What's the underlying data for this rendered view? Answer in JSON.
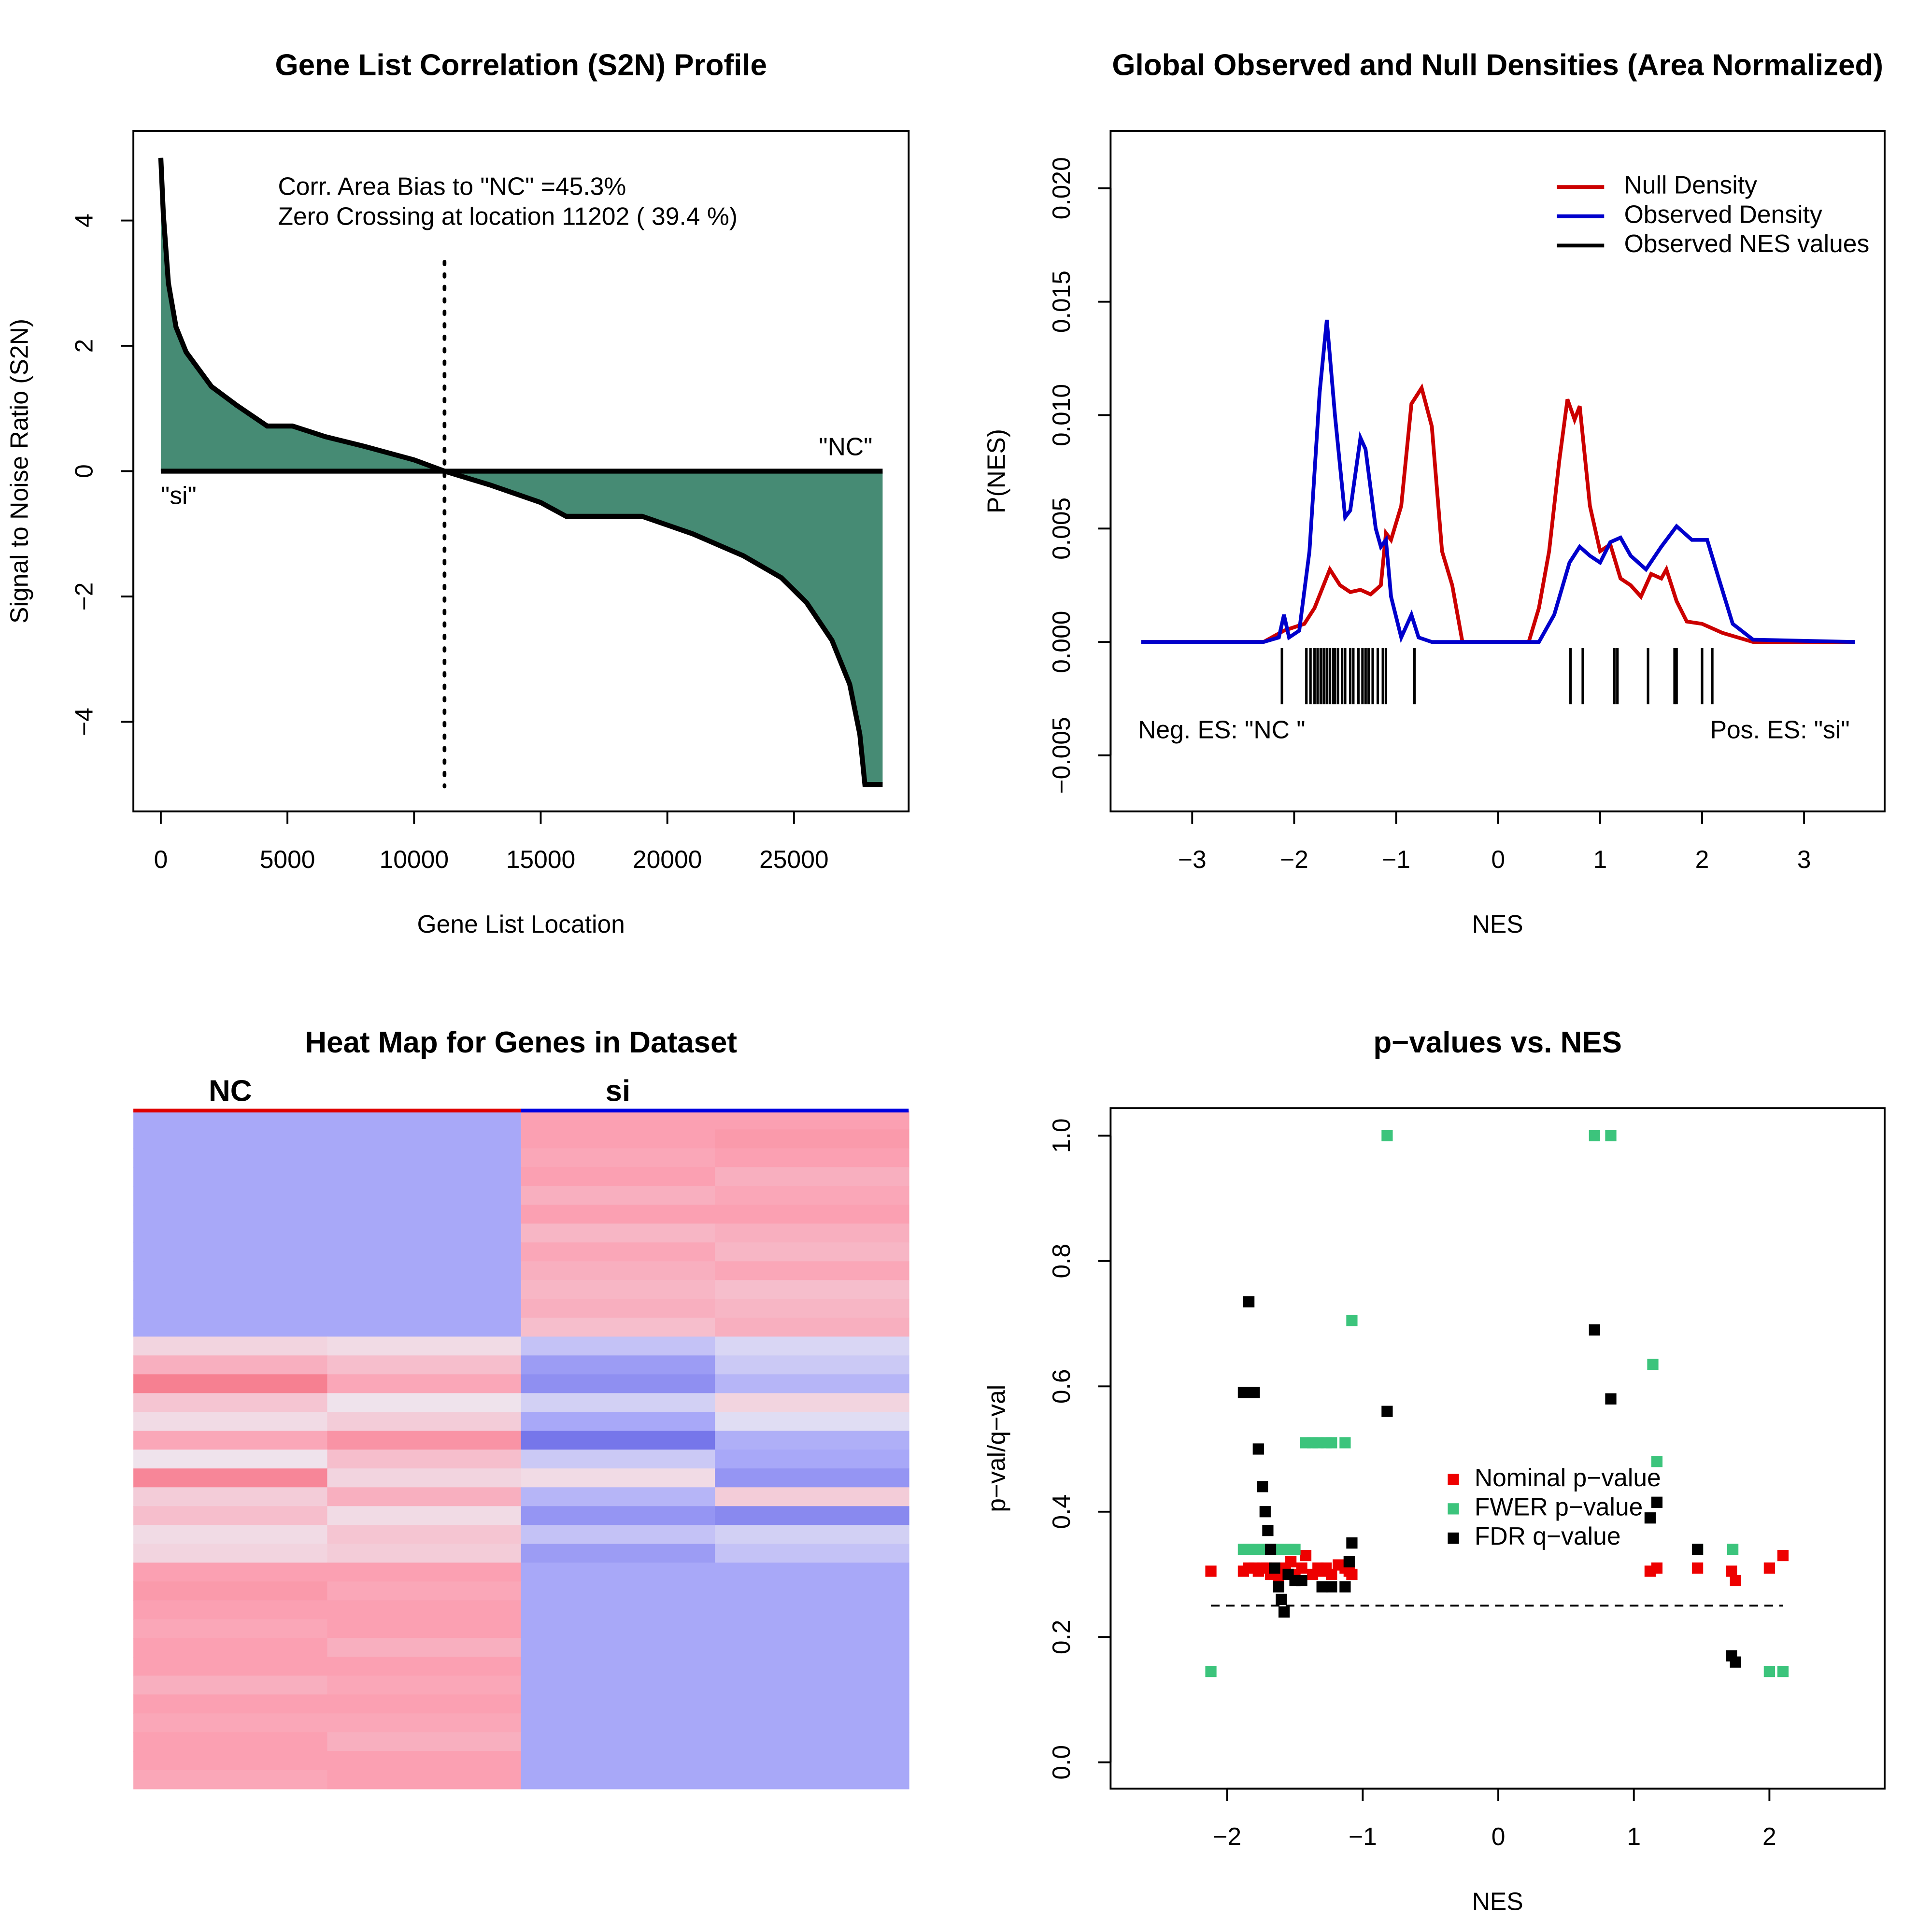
{
  "chart_data": [
    {
      "type": "area",
      "title": "Gene List Correlation (S2N) Profile",
      "x_label": "Gene List Location",
      "y_label": "Signal to Noise Ratio (S2N)",
      "x": [
        0,
        100,
        300,
        600,
        1000,
        2000,
        3000,
        4200,
        5200,
        6500,
        8000,
        10000,
        11202,
        13000,
        15000,
        16000,
        19000,
        21000,
        23000,
        24500,
        25500,
        26500,
        27200,
        27600,
        27800,
        28500
      ],
      "series": [
        {
          "color": "#468b74",
          "values": [
            5.0,
            4.1,
            3.0,
            2.3,
            1.9,
            1.35,
            1.05,
            0.72,
            0.72,
            0.55,
            0.4,
            0.18,
            0,
            -0.22,
            -0.5,
            -0.72,
            -0.72,
            -1.0,
            -1.35,
            -1.7,
            -2.1,
            -2.7,
            -3.4,
            -4.2,
            -5.0,
            -5.0
          ]
        }
      ],
      "zero_crossing": 11202,
      "annotations": [
        "Corr. Area Bias to \"NC\" =45.3%",
        "Zero Crossing at location  11202  ( 39.4  %)",
        "\"NC\"",
        "\"si\""
      ],
      "xlim": [
        -1083,
        29528
      ],
      "ylim": [
        -5.43,
        5.43
      ],
      "xticks": [
        0,
        5000,
        10000,
        15000,
        20000,
        25000
      ],
      "yticks": [
        {
          "value": -4,
          "label": "−4"
        },
        {
          "value": -2,
          "label": "−2"
        },
        0,
        2,
        4
      ]
    },
    {
      "type": "line",
      "title": "Global Observed and Null Densities (Area Normalized)",
      "x_label": "NES",
      "y_label": "P(NES)",
      "series": [
        {
          "name": "Null Density",
          "color": "#cc0000",
          "x": [
            -3.5,
            -2.3,
            -2.1,
            -1.9,
            -1.8,
            -1.65,
            -1.55,
            -1.45,
            -1.35,
            -1.25,
            -1.15,
            -1.1,
            -1.05,
            -0.95,
            -0.85,
            -0.75,
            -0.65,
            -0.55,
            -0.45,
            -0.35,
            0.3,
            0.4,
            0.5,
            0.6,
            0.68,
            0.75,
            0.8,
            0.9,
            1.0,
            1.1,
            1.2,
            1.3,
            1.4,
            1.5,
            1.6,
            1.65,
            1.75,
            1.85,
            2.0,
            2.2,
            2.5,
            3.5
          ],
          "values": [
            0,
            0,
            0.0005,
            0.0008,
            0.0015,
            0.0032,
            0.0025,
            0.0022,
            0.0023,
            0.0021,
            0.0025,
            0.0048,
            0.0045,
            0.006,
            0.0105,
            0.0112,
            0.0095,
            0.004,
            0.0025,
            0,
            0,
            0.0015,
            0.004,
            0.008,
            0.0107,
            0.0098,
            0.0104,
            0.006,
            0.004,
            0.0043,
            0.0028,
            0.0025,
            0.002,
            0.003,
            0.0028,
            0.0032,
            0.0018,
            0.0009,
            0.0008,
            0.0004,
            0,
            0
          ]
        },
        {
          "name": "Observed Density",
          "color": "#0000cc",
          "x": [
            -3.5,
            -2.3,
            -2.15,
            -2.1,
            -2.05,
            -1.95,
            -1.85,
            -1.75,
            -1.68,
            -1.6,
            -1.5,
            -1.45,
            -1.35,
            -1.3,
            -1.2,
            -1.15,
            -1.1,
            -1.05,
            -0.95,
            -0.85,
            -0.78,
            -0.65,
            0.4,
            0.55,
            0.7,
            0.8,
            0.9,
            1.0,
            1.1,
            1.2,
            1.3,
            1.45,
            1.6,
            1.75,
            1.9,
            2.05,
            2.15,
            2.3,
            2.5,
            3.5
          ],
          "values": [
            0,
            0,
            0.0002,
            0.0012,
            0.0002,
            0.0005,
            0.004,
            0.011,
            0.0142,
            0.01,
            0.0055,
            0.0058,
            0.009,
            0.0085,
            0.005,
            0.0042,
            0.0045,
            0.002,
            0.0002,
            0.0012,
            0.0002,
            0,
            0,
            0.0012,
            0.0035,
            0.0042,
            0.0038,
            0.0035,
            0.0044,
            0.0046,
            0.0038,
            0.0032,
            0.0042,
            0.0051,
            0.0045,
            0.0045,
            0.003,
            0.0008,
            0.0001,
            0
          ]
        }
      ],
      "rug": {
        "name": "Observed NES values",
        "color": "#000000",
        "x": [
          -2.12,
          -1.88,
          -1.84,
          -1.8,
          -1.77,
          -1.74,
          -1.71,
          -1.68,
          -1.65,
          -1.62,
          -1.6,
          -1.57,
          -1.53,
          -1.5,
          -1.45,
          -1.42,
          -1.37,
          -1.33,
          -1.3,
          -1.27,
          -1.23,
          -1.18,
          -1.13,
          -1.1,
          -0.82,
          0.71,
          0.83,
          1.14,
          1.17,
          1.47,
          1.73,
          1.75,
          2.0,
          2.1
        ]
      },
      "annotations": [
        "Neg. ES: \"NC \"",
        "Pos. ES: \"si\""
      ],
      "legend": "top-right",
      "xlim": [
        -3.8,
        3.79
      ],
      "ylim": [
        -0.00747,
        0.02253
      ],
      "xticks": [
        {
          "value": -3,
          "label": "−3"
        },
        {
          "value": -2,
          "label": "−2"
        },
        {
          "value": -1,
          "label": "−1"
        },
        0,
        1,
        2,
        3
      ],
      "yticks": [
        {
          "value": -0.005,
          "label": "−0.005"
        },
        {
          "value": 0,
          "label": "0.000"
        },
        {
          "value": 0.005,
          "label": "0.005"
        },
        {
          "value": 0.01,
          "label": "0.010"
        },
        {
          "value": 0.015,
          "label": "0.015"
        },
        {
          "value": 0.02,
          "label": "0.020"
        }
      ]
    },
    {
      "type": "heatmap",
      "title": "Heat Map for Genes in Dataset",
      "groups": [
        {
          "name": "NC",
          "color": "#e00000"
        },
        {
          "name": "si",
          "color": "#0000e0"
        }
      ],
      "color_scale": {
        "values": [
          -2,
          -1,
          0,
          1,
          2
        ],
        "colors": [
          "#6a6ae6",
          "#a8a8f8",
          "#eeeaf2",
          "#fba0b2",
          "#f06070"
        ]
      },
      "rows": [
        [
          -1,
          -1,
          1,
          1
        ],
        [
          -1,
          -1,
          1,
          1.1
        ],
        [
          -1,
          -1,
          0.9,
          1
        ],
        [
          -1,
          -1,
          1,
          0.8
        ],
        [
          -1,
          -1,
          0.8,
          0.9
        ],
        [
          -1,
          -1,
          1,
          1
        ],
        [
          -1,
          -1,
          0.7,
          0.8
        ],
        [
          -1,
          -1,
          0.9,
          0.7
        ],
        [
          -1,
          -1,
          0.8,
          0.9
        ],
        [
          -1,
          -1,
          0.7,
          0.6
        ],
        [
          -1,
          -1,
          0.8,
          0.7
        ],
        [
          -1,
          -1,
          0.6,
          0.8
        ],
        [
          0.3,
          0.2,
          -0.6,
          -0.3
        ],
        [
          0.8,
          0.6,
          -1.2,
          -0.5
        ],
        [
          1.5,
          0.9,
          -1.4,
          -0.8
        ],
        [
          0.5,
          0.1,
          -0.4,
          0.3
        ],
        [
          0.2,
          0.4,
          -1.0,
          -0.2
        ],
        [
          0.9,
          1.2,
          -1.8,
          -0.9
        ],
        [
          0.1,
          0.6,
          -0.5,
          -1.0
        ],
        [
          1.4,
          0.3,
          0.2,
          -1.3
        ],
        [
          0.4,
          0.8,
          -0.8,
          0.4
        ],
        [
          0.6,
          0.2,
          -1.3,
          -1.5
        ],
        [
          0.2,
          0.5,
          -0.6,
          -0.4
        ],
        [
          0.3,
          0.4,
          -1.2,
          -0.6
        ],
        [
          1,
          1,
          -1,
          -1
        ],
        [
          1.1,
          0.9,
          -1,
          -1
        ],
        [
          1,
          1,
          -1,
          -1
        ],
        [
          0.9,
          1,
          -1,
          -1
        ],
        [
          1,
          0.8,
          -1,
          -1
        ],
        [
          1,
          1,
          -1,
          -1
        ],
        [
          0.8,
          0.9,
          -1,
          -1
        ],
        [
          1,
          1,
          -1,
          -1
        ],
        [
          0.9,
          0.9,
          -1,
          -1
        ],
        [
          1,
          0.8,
          -1,
          -1
        ],
        [
          1,
          1,
          -1,
          -1
        ],
        [
          0.9,
          1,
          -1,
          -1
        ]
      ]
    },
    {
      "type": "scatter",
      "title": "p−values vs. NES",
      "x_label": "NES",
      "y_label": "p−val/q−val",
      "series": [
        {
          "name": "Nominal p−value",
          "color": "#ee0000",
          "x": [
            -2.12,
            -1.88,
            -1.84,
            -1.8,
            -1.77,
            -1.74,
            -1.71,
            -1.68,
            -1.65,
            -1.62,
            -1.6,
            -1.57,
            -1.53,
            -1.5,
            -1.45,
            -1.42,
            -1.37,
            -1.33,
            -1.3,
            -1.27,
            -1.23,
            -1.18,
            -1.13,
            -1.1,
            -1.08,
            1.12,
            1.17,
            1.47,
            1.72,
            1.75,
            2.0,
            2.1
          ],
          "values": [
            0.305,
            0.305,
            0.31,
            0.31,
            0.305,
            0.31,
            0.31,
            0.3,
            0.31,
            0.29,
            0.3,
            0.31,
            0.32,
            0.3,
            0.31,
            0.33,
            0.3,
            0.31,
            0.305,
            0.31,
            0.3,
            0.315,
            0.31,
            0.305,
            0.3,
            0.305,
            0.31,
            0.31,
            0.305,
            0.29,
            0.31,
            0.33
          ]
        },
        {
          "name": "FWER p−value",
          "color": "#3cc47c",
          "x": [
            -2.12,
            -1.88,
            -1.84,
            -1.8,
            -1.77,
            -1.74,
            -1.71,
            -1.68,
            -1.65,
            -1.62,
            -1.57,
            -1.53,
            -1.5,
            -1.42,
            -1.37,
            -1.33,
            -1.27,
            -1.23,
            -1.13,
            -1.08,
            -0.82,
            0.71,
            0.83,
            1.14,
            1.17,
            1.47,
            1.73,
            2.0,
            2.1
          ],
          "values": [
            0.145,
            0.34,
            0.34,
            0.34,
            0.34,
            0.34,
            0.34,
            0.34,
            0.34,
            0.34,
            0.34,
            0.34,
            0.34,
            0.51,
            0.51,
            0.51,
            0.51,
            0.51,
            0.51,
            0.705,
            1.0,
            1.0,
            1.0,
            0.635,
            0.48,
            0.34,
            0.34,
            0.145,
            0.145
          ]
        },
        {
          "name": "FDR q−value",
          "color": "#000000",
          "x": [
            -1.88,
            -1.84,
            -1.8,
            -1.77,
            -1.74,
            -1.72,
            -1.7,
            -1.68,
            -1.65,
            -1.62,
            -1.6,
            -1.58,
            -1.55,
            -1.5,
            -1.45,
            -1.3,
            -1.23,
            -1.13,
            -1.1,
            -1.08,
            -0.82,
            0.71,
            0.83,
            1.12,
            1.17,
            1.47,
            1.72,
            1.75
          ],
          "values": [
            0.59,
            0.735,
            0.59,
            0.5,
            0.44,
            0.4,
            0.37,
            0.34,
            0.31,
            0.28,
            0.26,
            0.24,
            0.3,
            0.29,
            0.29,
            0.28,
            0.28,
            0.28,
            0.32,
            0.35,
            0.56,
            0.69,
            0.58,
            0.39,
            0.415,
            0.34,
            0.17,
            0.16
          ]
        }
      ],
      "reference_line": 0.25,
      "legend": "center",
      "xlim": [
        -2.86,
        2.85
      ],
      "ylim": [
        -0.042,
        1.044
      ],
      "xticks": [
        {
          "value": -2,
          "label": "−2"
        },
        {
          "value": -1,
          "label": "−1"
        },
        0,
        1,
        2
      ],
      "yticks": [
        {
          "value": 0,
          "label": "0.0"
        },
        {
          "value": 0.2,
          "label": "0.2"
        },
        {
          "value": 0.4,
          "label": "0.4"
        },
        {
          "value": 0.6,
          "label": "0.6"
        },
        {
          "value": 0.8,
          "label": "0.8"
        },
        {
          "value": 1,
          "label": "1.0"
        }
      ]
    }
  ]
}
